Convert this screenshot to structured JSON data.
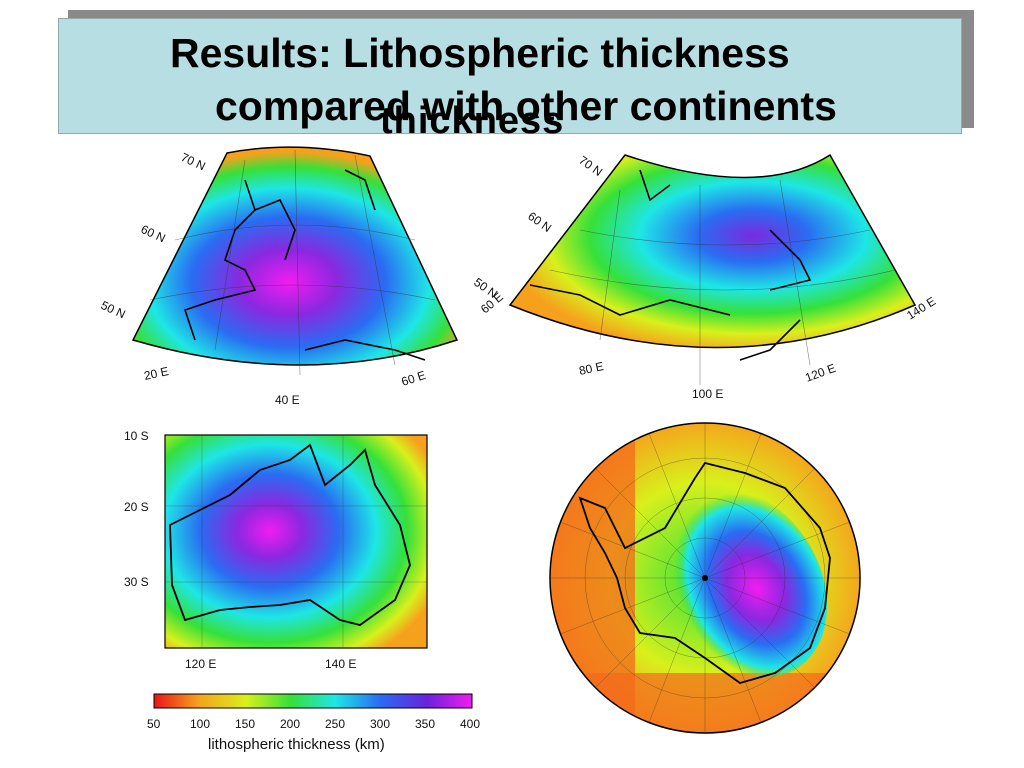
{
  "slide": {
    "title_line1": "Results: Lithospheric thickness",
    "title_line2": "compared with other continents",
    "ghost_text": "thickness"
  },
  "maps": {
    "europe": {
      "lat_labels": [
        "70 N",
        "60 N",
        "50 N"
      ],
      "lon_labels": [
        "20 E",
        "40 E",
        "60 E"
      ]
    },
    "asia": {
      "lat_labels": [
        "70 N",
        "60 N",
        "50 N"
      ],
      "lon_labels": [
        "60 E",
        "80 E",
        "100 E",
        "120 E",
        "140 E"
      ]
    },
    "australia": {
      "lat_labels": [
        "10 S",
        "20 S",
        "30 S"
      ],
      "lon_labels": [
        "120 E",
        "140 E"
      ]
    }
  },
  "colorbar": {
    "ticks": [
      "50",
      "100",
      "150",
      "200",
      "250",
      "300",
      "350",
      "400"
    ],
    "title": "lithospheric thickness (km)",
    "colors": [
      "#e8141a",
      "#f6a11c",
      "#d8f01c",
      "#36e03a",
      "#1ee6e6",
      "#2a6cf2",
      "#6a22dc",
      "#f21cf2"
    ]
  }
}
